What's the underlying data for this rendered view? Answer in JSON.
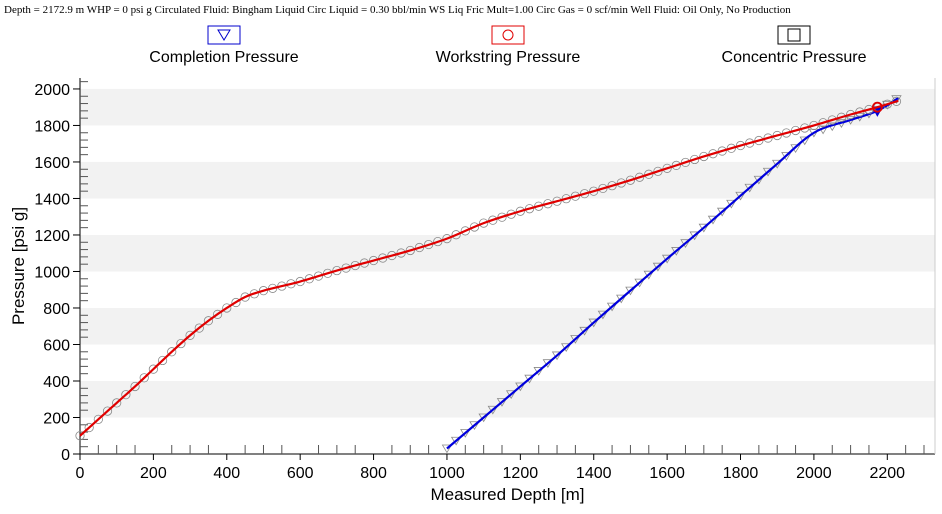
{
  "header": {
    "info": "Depth = 2172.9 m  WHP = 0 psi g Circulated Fluid: Bingham Liquid Circ Liquid = 0.30 bbl/min WS Liq Fric Mult=1.00 Circ Gas = 0 scf/min  Well Fluid: Oil Only, No Production"
  },
  "legend": [
    {
      "label": "Completion Pressure",
      "symbol": "▽",
      "color": "#0000cc"
    },
    {
      "label": "Workstring Pressure",
      "symbol": "○",
      "color": "#e00000"
    },
    {
      "label": "Concentric Pressure",
      "symbol": "□",
      "color": "#000000"
    }
  ],
  "colors": {
    "completion": "#0000dd",
    "workstring": "#e00000",
    "band": "#f2f2f2",
    "marker": "#888888"
  },
  "chart_data": {
    "type": "line",
    "xlabel": "Measured Depth [m]",
    "ylabel": "Pressure [psi g]",
    "xlim": [
      0,
      2330
    ],
    "ylim": [
      0,
      2060
    ],
    "x_ticks": [
      0,
      200,
      400,
      600,
      800,
      1000,
      1200,
      1400,
      1600,
      1800,
      2000,
      2200
    ],
    "y_ticks": [
      0,
      200,
      400,
      600,
      800,
      1000,
      1200,
      1400,
      1600,
      1800,
      2000
    ],
    "grid": "alternating horizontal bands",
    "legend_position": "top",
    "cursor_depth": 2172.9,
    "series": [
      {
        "name": "Completion Pressure",
        "marker": "triangle-down",
        "x": [
          1000,
          1100,
          1200,
          1300,
          1400,
          1500,
          1600,
          1700,
          1800,
          1900,
          2000,
          2100,
          2172.9,
          2230
        ],
        "y": [
          30,
          200,
          370,
          540,
          720,
          895,
          1070,
          1240,
          1415,
          1590,
          1760,
          1830,
          1880,
          1950
        ]
      },
      {
        "name": "Workstring Pressure",
        "marker": "circle",
        "x": [
          0,
          50,
          100,
          150,
          200,
          250,
          300,
          350,
          400,
          450,
          500,
          600,
          700,
          800,
          900,
          1000,
          1100,
          1200,
          1300,
          1400,
          1500,
          1600,
          1700,
          1800,
          1900,
          2000,
          2100,
          2172.9,
          2230
        ],
        "y": [
          100,
          190,
          280,
          370,
          465,
          560,
          650,
          730,
          800,
          860,
          895,
          945,
          1005,
          1060,
          1115,
          1180,
          1265,
          1330,
          1385,
          1440,
          1500,
          1565,
          1630,
          1690,
          1745,
          1800,
          1860,
          1900,
          1935
        ]
      }
    ]
  }
}
